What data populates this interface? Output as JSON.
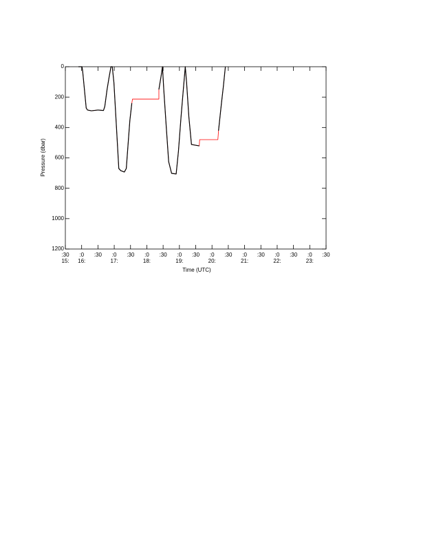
{
  "chart_data": {
    "type": "line",
    "x_label": "Time (UTC)",
    "y_label": "Pressure (dbar)",
    "x": [
      15.9,
      16.01,
      16.03,
      16.14,
      16.18,
      16.3,
      16.5,
      16.67,
      16.71,
      16.78,
      16.84,
      16.9,
      16.94,
      16.99,
      17.05,
      17.14,
      17.2,
      17.31,
      17.37,
      17.44,
      17.48,
      17.54,
      17.56,
      18.37,
      18.37,
      18.44,
      18.48,
      18.52,
      18.59,
      18.67,
      18.76,
      18.9,
      18.97,
      19.05,
      19.12,
      19.18,
      19.22,
      19.29,
      19.37,
      19.61,
      19.62,
      20.18,
      20.2,
      20.29,
      20.35,
      20.41
    ],
    "series": [
      {
        "color": "#ff0000",
        "values": [
          0,
          0,
          27,
          272,
          285,
          290,
          285,
          288,
          262,
          150,
          72,
          0,
          0,
          104,
          330,
          670,
          684,
          693,
          670,
          466,
          353,
          240,
          213,
          213,
          150,
          59,
          0,
          150,
          376,
          625,
          702,
          706,
          557,
          330,
          150,
          0,
          104,
          330,
          512,
          521,
          480,
          480,
          421,
          240,
          127,
          0
        ]
      },
      {
        "color": "#000000",
        "values": [
          0,
          0,
          27,
          272,
          285,
          290,
          285,
          288,
          262,
          150,
          72,
          0,
          0,
          104,
          330,
          670,
          684,
          693,
          670,
          466,
          353,
          240,
          null,
          null,
          150,
          59,
          0,
          150,
          376,
          625,
          702,
          706,
          557,
          330,
          150,
          0,
          104,
          330,
          512,
          521,
          null,
          null,
          421,
          240,
          127,
          0
        ]
      }
    ],
    "xlim": [
      15.5,
      23.5
    ],
    "xticks": [
      {
        "value": 15.5,
        "label": ":30"
      },
      {
        "value": 16,
        "label": ":0"
      },
      {
        "value": 16.5,
        "label": ":30"
      },
      {
        "value": 17,
        "label": ":0"
      },
      {
        "value": 17.5,
        "label": ":30"
      },
      {
        "value": 18,
        "label": ":0"
      },
      {
        "value": 18.5,
        "label": ":30"
      },
      {
        "value": 19,
        "label": ":0"
      },
      {
        "value": 19.5,
        "label": ":30"
      },
      {
        "value": 20,
        "label": ":0"
      },
      {
        "value": 20.5,
        "label": ":30"
      },
      {
        "value": 21,
        "label": ":0"
      },
      {
        "value": 21.5,
        "label": ":30"
      },
      {
        "value": 22,
        "label": ":0"
      },
      {
        "value": 22.5,
        "label": ":30"
      },
      {
        "value": 23,
        "label": ":0"
      },
      {
        "value": 23.5,
        "label": ":30"
      }
    ],
    "x_hour_labels": [
      {
        "value": 15.5,
        "label": "15:"
      },
      {
        "value": 16,
        "label": "16:"
      },
      {
        "value": 17,
        "label": "17:"
      },
      {
        "value": 18,
        "label": "18:"
      },
      {
        "value": 19,
        "label": "19:"
      },
      {
        "value": 20,
        "label": "20:"
      },
      {
        "value": 21,
        "label": "21:"
      },
      {
        "value": 22,
        "label": "22:"
      },
      {
        "value": 23,
        "label": "23:"
      }
    ],
    "ylim": [
      1200,
      0
    ],
    "yticks": [
      0,
      200,
      400,
      600,
      800,
      1000,
      1200
    ]
  }
}
